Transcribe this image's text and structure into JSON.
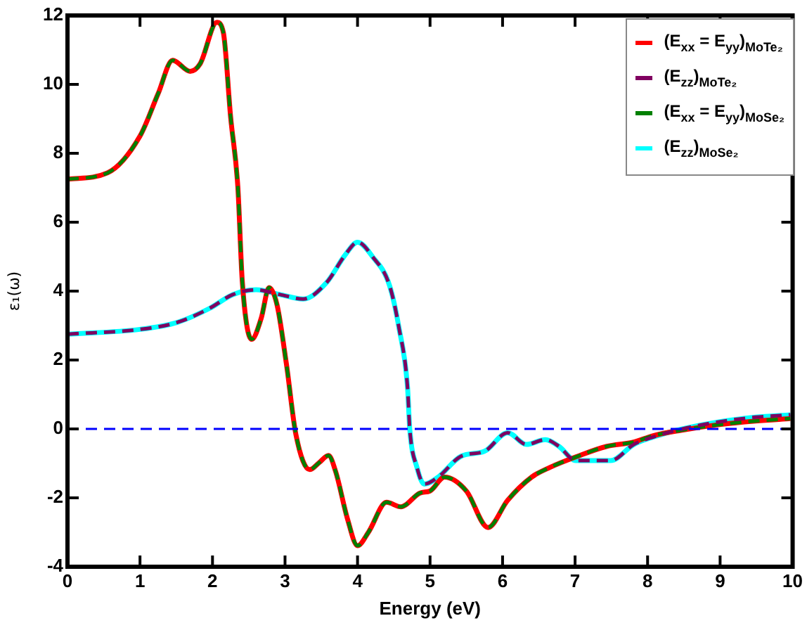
{
  "chart_data": {
    "type": "line",
    "xlabel": "Energy (eV)",
    "ylabel": "ε₁(ω)",
    "xlim": [
      0,
      10
    ],
    "xticks": [
      0,
      1,
      2,
      3,
      4,
      5,
      6,
      7,
      8,
      9,
      10
    ],
    "ylim": [
      -4,
      12
    ],
    "yticks": [
      -4,
      -2,
      0,
      2,
      4,
      6,
      8,
      10,
      12
    ],
    "grid": false,
    "legend": "top right",
    "marker": "none",
    "ref_lines": [
      {
        "axis": "y",
        "value": 0,
        "color": "#0000ff",
        "line_style": "dashed"
      }
    ],
    "series": [
      {
        "name": "(E$_{xx}$ = E$_{yy}$)$_{MoTe₂}$",
        "color": "#ff0000",
        "line_style": "solid",
        "x": [
          0,
          0.55,
          1.0,
          1.25,
          1.45,
          1.69,
          1.83,
          2.06,
          2.15,
          2.25,
          2.35,
          2.41,
          2.54,
          2.67,
          2.78,
          2.89,
          3.02,
          3.15,
          3.34,
          3.47,
          3.6,
          3.7,
          3.86,
          4.0,
          4.15,
          4.4,
          4.6,
          4.66,
          4.86,
          5.0,
          5.2,
          5.5,
          5.8,
          6.07,
          6.4,
          6.65,
          7.04,
          7.43,
          7.81,
          8.07,
          8.46,
          8.97,
          9.49,
          9.97
        ],
        "values": [
          7.25,
          7.43,
          8.5,
          9.73,
          10.7,
          10.38,
          10.6,
          11.8,
          11.5,
          9.05,
          7.0,
          4.3,
          2.6,
          3.2,
          4.1,
          3.6,
          1.87,
          -0.16,
          -1.18,
          -0.98,
          -0.77,
          -1.25,
          -2.6,
          -3.39,
          -3.0,
          -2.13,
          -2.26,
          -2.21,
          -1.86,
          -1.8,
          -1.4,
          -1.8,
          -2.86,
          -2.07,
          -1.4,
          -1.12,
          -0.79,
          -0.51,
          -0.38,
          -0.2,
          -0.04,
          0.12,
          0.23,
          0.3
        ]
      },
      {
        "name": "(E$_{zz}$)$_{MoTe₂}$",
        "color": "#800060",
        "line_style": "dashed",
        "x": [
          0,
          1,
          1.51,
          1.96,
          2.28,
          2.6,
          2.93,
          3.25,
          3.57,
          3.83,
          4.0,
          4.21,
          4.44,
          4.57,
          4.69,
          4.72,
          4.82,
          4.92,
          5.11,
          5.43,
          5.75,
          6.07,
          6.33,
          6.59,
          6.78,
          7.01,
          7.49,
          7.81,
          8.07,
          8.46,
          8.97,
          9.49,
          9.97
        ],
        "values": [
          2.75,
          2.89,
          3.09,
          3.5,
          3.9,
          4.04,
          3.9,
          3.77,
          4.24,
          5.05,
          5.42,
          4.99,
          4.17,
          2.95,
          1.19,
          0,
          -1.12,
          -1.6,
          -1.4,
          -0.79,
          -0.65,
          -0.11,
          -0.45,
          -0.31,
          -0.51,
          -0.92,
          -0.92,
          -0.45,
          -0.24,
          -0.01,
          0.2,
          0.34,
          0.41
        ]
      },
      {
        "name": "(E$_{xx}$ = E$_{yy}$)$_{MoSe₂}$",
        "color": "#008000",
        "line_style": "dashed",
        "x": [
          0,
          0.55,
          1.0,
          1.25,
          1.45,
          1.69,
          1.83,
          2.06,
          2.15,
          2.25,
          2.35,
          2.41,
          2.54,
          2.67,
          2.78,
          2.89,
          3.02,
          3.15,
          3.34,
          3.47,
          3.6,
          3.7,
          3.86,
          4.0,
          4.15,
          4.4,
          4.6,
          4.66,
          4.86,
          5.0,
          5.2,
          5.5,
          5.8,
          6.07,
          6.4,
          6.65,
          7.04,
          7.43,
          7.81,
          8.07,
          8.46,
          8.97,
          9.49,
          9.97
        ],
        "values": [
          7.25,
          7.43,
          8.5,
          9.73,
          10.7,
          10.38,
          10.6,
          11.8,
          11.5,
          9.05,
          7.0,
          4.3,
          2.6,
          3.2,
          4.1,
          3.6,
          1.87,
          -0.16,
          -1.18,
          -0.98,
          -0.77,
          -1.25,
          -2.6,
          -3.39,
          -3.0,
          -2.13,
          -2.26,
          -2.21,
          -1.86,
          -1.8,
          -1.4,
          -1.8,
          -2.86,
          -2.07,
          -1.4,
          -1.12,
          -0.79,
          -0.51,
          -0.38,
          -0.2,
          -0.04,
          0.12,
          0.23,
          0.3
        ]
      },
      {
        "name": "(E$_{zz}$)$_{MoSe₂}$",
        "color": "#00ffff",
        "line_style": "solid",
        "x": [
          0,
          1,
          1.51,
          1.96,
          2.28,
          2.6,
          2.93,
          3.25,
          3.57,
          3.83,
          4.0,
          4.21,
          4.44,
          4.57,
          4.69,
          4.72,
          4.82,
          4.92,
          5.11,
          5.43,
          5.75,
          6.07,
          6.33,
          6.59,
          6.78,
          7.01,
          7.49,
          7.81,
          8.07,
          8.46,
          8.97,
          9.49,
          9.97
        ],
        "values": [
          2.75,
          2.89,
          3.09,
          3.5,
          3.9,
          4.04,
          3.9,
          3.77,
          4.24,
          5.05,
          5.42,
          4.99,
          4.17,
          2.95,
          1.19,
          0,
          -1.12,
          -1.6,
          -1.4,
          -0.79,
          -0.65,
          -0.11,
          -0.45,
          -0.31,
          -0.51,
          -0.92,
          -0.92,
          -0.45,
          -0.24,
          -0.01,
          0.2,
          0.34,
          0.41
        ]
      }
    ]
  }
}
